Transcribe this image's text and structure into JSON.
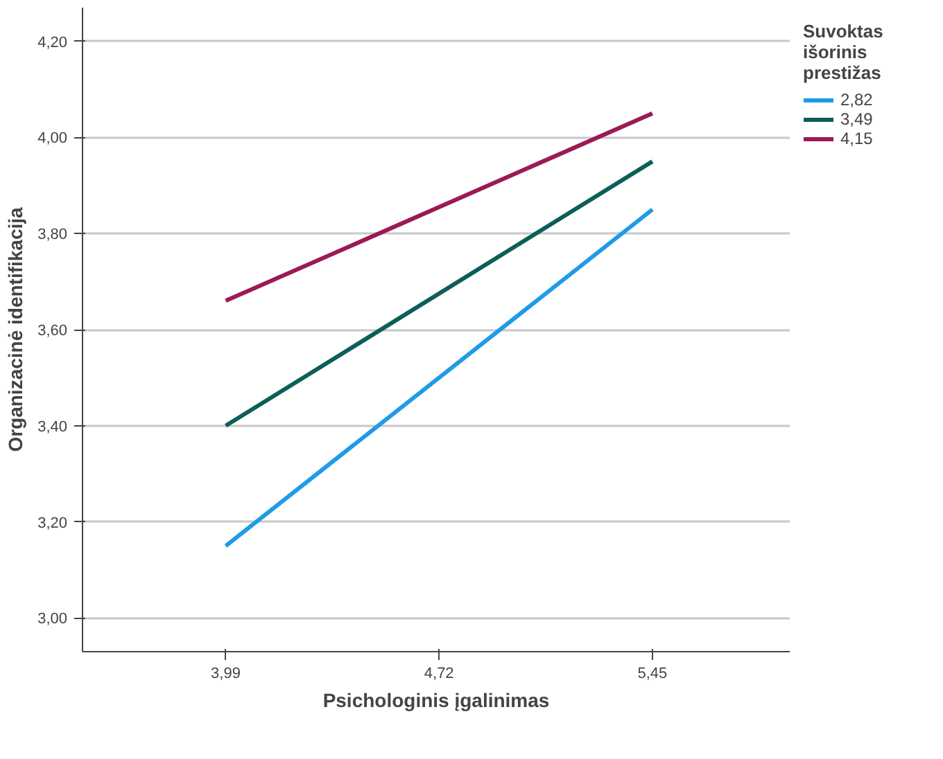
{
  "chart_data": {
    "type": "line",
    "xlabel": "Psichologinis įgalinimas",
    "ylabel": "Organizacinė identifikacija",
    "legend_title": "Suvoktas išorinis prestižas",
    "x": [
      3.99,
      5.45
    ],
    "series": [
      {
        "name": "2,82",
        "color": "#1f9be8",
        "values": [
          3.15,
          3.85
        ]
      },
      {
        "name": "3,49",
        "color": "#0e5e58",
        "values": [
          3.4,
          3.95
        ]
      },
      {
        "name": "4,15",
        "color": "#9b1a55",
        "values": [
          3.66,
          4.05
        ]
      }
    ],
    "xlim": [
      3.5,
      5.92
    ],
    "xticks": [
      {
        "value": 3.99,
        "label": "3,99"
      },
      {
        "value": 4.72,
        "label": "4,72"
      },
      {
        "value": 5.45,
        "label": "5,45"
      }
    ],
    "ylim": [
      2.93,
      4.27
    ],
    "yticks": [
      {
        "value": 3.0,
        "label": "3,00"
      },
      {
        "value": 3.2,
        "label": "3,20"
      },
      {
        "value": 3.4,
        "label": "3,40"
      },
      {
        "value": 3.6,
        "label": "3,60"
      },
      {
        "value": 3.8,
        "label": "3,80"
      },
      {
        "value": 4.0,
        "label": "4,00"
      },
      {
        "value": 4.2,
        "label": "4,20"
      }
    ],
    "grid": "y",
    "legend": "top right",
    "marker": "none",
    "line_style": "solid"
  }
}
